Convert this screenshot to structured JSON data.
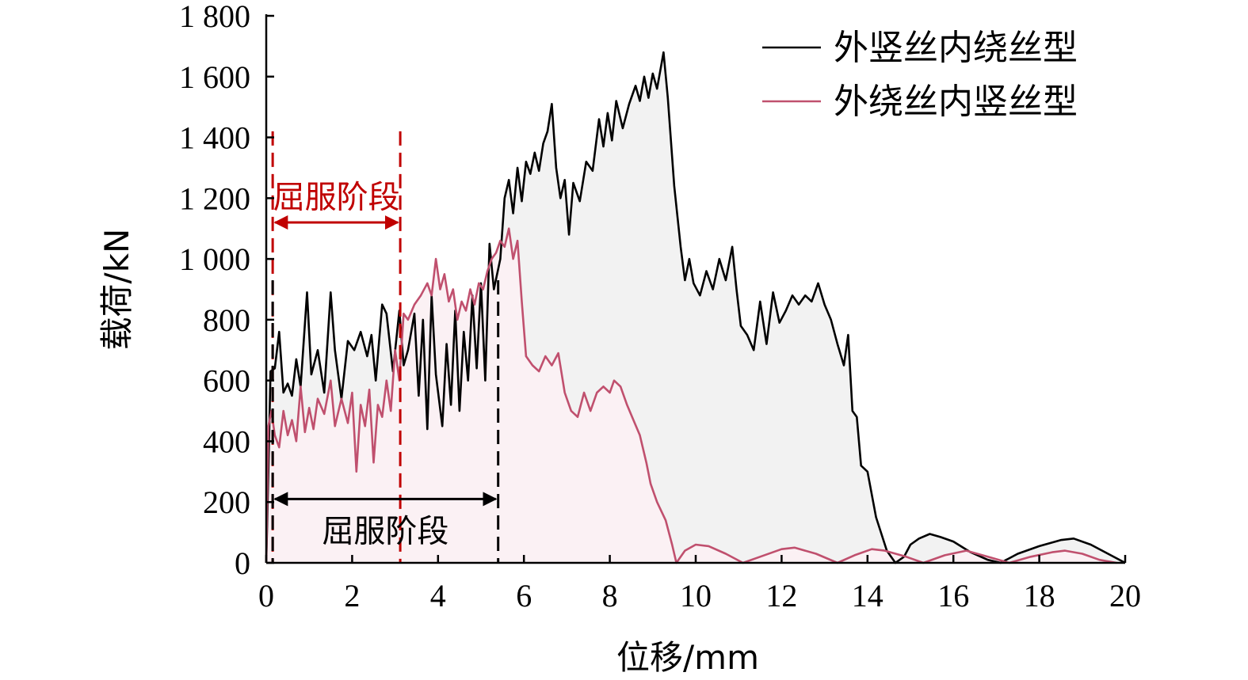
{
  "chart_data": {
    "type": "line",
    "title": "",
    "xlabel": "位移/mm",
    "ylabel": "载荷/kN",
    "xlim": [
      0,
      20
    ],
    "ylim": [
      0,
      1800
    ],
    "x_ticks": [
      0,
      2,
      4,
      6,
      8,
      10,
      12,
      14,
      16,
      18,
      20
    ],
    "x_tick_labels": [
      "0",
      "2",
      "4",
      "6",
      "8",
      "10",
      "12",
      "14",
      "16",
      "18",
      "20"
    ],
    "y_ticks": [
      0,
      200,
      400,
      600,
      800,
      1000,
      1200,
      1400,
      1600,
      1800
    ],
    "y_tick_labels": [
      "0",
      "200",
      "400",
      "600",
      "800",
      "1 000",
      "1 200",
      "1 400",
      "1 600",
      "1 800"
    ],
    "grid": false,
    "legend_position": "top-right",
    "series": [
      {
        "name": "外竖丝内绕丝型",
        "color": "#000000",
        "fill": "#f2f2f2",
        "points": [
          [
            0,
            0
          ],
          [
            0.05,
            300
          ],
          [
            0.1,
            630
          ],
          [
            0.2,
            640
          ],
          [
            0.3,
            760
          ],
          [
            0.4,
            560
          ],
          [
            0.5,
            590
          ],
          [
            0.6,
            550
          ],
          [
            0.7,
            670
          ],
          [
            0.8,
            580
          ],
          [
            0.95,
            890
          ],
          [
            1.05,
            620
          ],
          [
            1.2,
            700
          ],
          [
            1.35,
            560
          ],
          [
            1.5,
            890
          ],
          [
            1.6,
            700
          ],
          [
            1.75,
            540
          ],
          [
            1.9,
            730
          ],
          [
            2.05,
            700
          ],
          [
            2.2,
            760
          ],
          [
            2.35,
            680
          ],
          [
            2.45,
            750
          ],
          [
            2.55,
            600
          ],
          [
            2.7,
            850
          ],
          [
            2.8,
            820
          ],
          [
            2.95,
            630
          ],
          [
            3.1,
            830
          ],
          [
            3.2,
            650
          ],
          [
            3.3,
            700
          ],
          [
            3.45,
            820
          ],
          [
            3.55,
            550
          ],
          [
            3.65,
            800
          ],
          [
            3.75,
            440
          ],
          [
            3.85,
            880
          ],
          [
            3.95,
            620
          ],
          [
            4.1,
            450
          ],
          [
            4.2,
            720
          ],
          [
            4.3,
            520
          ],
          [
            4.4,
            830
          ],
          [
            4.5,
            500
          ],
          [
            4.6,
            760
          ],
          [
            4.7,
            600
          ],
          [
            4.8,
            880
          ],
          [
            4.9,
            640
          ],
          [
            5.0,
            920
          ],
          [
            5.1,
            600
          ],
          [
            5.2,
            1050
          ],
          [
            5.3,
            900
          ],
          [
            5.45,
            1000
          ],
          [
            5.55,
            1200
          ],
          [
            5.65,
            1260
          ],
          [
            5.75,
            1150
          ],
          [
            5.85,
            1300
          ],
          [
            5.95,
            1190
          ],
          [
            6.05,
            1320
          ],
          [
            6.15,
            1280
          ],
          [
            6.25,
            1350
          ],
          [
            6.35,
            1290
          ],
          [
            6.45,
            1380
          ],
          [
            6.55,
            1420
          ],
          [
            6.65,
            1510
          ],
          [
            6.75,
            1300
          ],
          [
            6.85,
            1200
          ],
          [
            6.95,
            1260
          ],
          [
            7.05,
            1080
          ],
          [
            7.15,
            1250
          ],
          [
            7.3,
            1190
          ],
          [
            7.45,
            1320
          ],
          [
            7.6,
            1290
          ],
          [
            7.75,
            1460
          ],
          [
            7.85,
            1370
          ],
          [
            7.95,
            1480
          ],
          [
            8.05,
            1390
          ],
          [
            8.15,
            1520
          ],
          [
            8.3,
            1430
          ],
          [
            8.45,
            1510
          ],
          [
            8.6,
            1570
          ],
          [
            8.7,
            1520
          ],
          [
            8.8,
            1600
          ],
          [
            8.9,
            1530
          ],
          [
            9.0,
            1610
          ],
          [
            9.1,
            1560
          ],
          [
            9.25,
            1680
          ],
          [
            9.35,
            1530
          ],
          [
            9.5,
            1240
          ],
          [
            9.65,
            1040
          ],
          [
            9.75,
            930
          ],
          [
            9.85,
            1000
          ],
          [
            9.95,
            920
          ],
          [
            10.1,
            880
          ],
          [
            10.25,
            960
          ],
          [
            10.4,
            900
          ],
          [
            10.55,
            1000
          ],
          [
            10.7,
            930
          ],
          [
            10.85,
            1040
          ],
          [
            10.95,
            900
          ],
          [
            11.05,
            780
          ],
          [
            11.2,
            750
          ],
          [
            11.35,
            700
          ],
          [
            11.5,
            860
          ],
          [
            11.65,
            720
          ],
          [
            11.8,
            890
          ],
          [
            11.95,
            790
          ],
          [
            12.1,
            830
          ],
          [
            12.25,
            880
          ],
          [
            12.4,
            850
          ],
          [
            12.55,
            880
          ],
          [
            12.7,
            860
          ],
          [
            12.85,
            920
          ],
          [
            13.0,
            850
          ],
          [
            13.15,
            800
          ],
          [
            13.3,
            720
          ],
          [
            13.45,
            650
          ],
          [
            13.55,
            750
          ],
          [
            13.65,
            500
          ],
          [
            13.75,
            480
          ],
          [
            13.85,
            320
          ],
          [
            14.0,
            300
          ],
          [
            14.2,
            150
          ],
          [
            14.45,
            40
          ],
          [
            14.65,
            0
          ],
          [
            14.85,
            20
          ],
          [
            15.0,
            60
          ],
          [
            15.2,
            80
          ],
          [
            15.45,
            95
          ],
          [
            15.7,
            85
          ],
          [
            16.0,
            70
          ],
          [
            16.4,
            35
          ],
          [
            16.8,
            10
          ],
          [
            17.1,
            0
          ],
          [
            17.5,
            30
          ],
          [
            18.0,
            55
          ],
          [
            18.5,
            75
          ],
          [
            18.8,
            80
          ],
          [
            19.2,
            60
          ],
          [
            19.6,
            30
          ],
          [
            20.0,
            0
          ]
        ]
      },
      {
        "name": "外绕丝内竖丝型",
        "color": "#c0506e",
        "fill": "#fbf1f4",
        "points": [
          [
            0,
            0
          ],
          [
            0.05,
            450
          ],
          [
            0.12,
            500
          ],
          [
            0.2,
            420
          ],
          [
            0.3,
            380
          ],
          [
            0.4,
            500
          ],
          [
            0.5,
            420
          ],
          [
            0.6,
            470
          ],
          [
            0.7,
            400
          ],
          [
            0.8,
            580
          ],
          [
            0.9,
            430
          ],
          [
            1.0,
            510
          ],
          [
            1.1,
            440
          ],
          [
            1.2,
            540
          ],
          [
            1.35,
            490
          ],
          [
            1.5,
            600
          ],
          [
            1.6,
            450
          ],
          [
            1.75,
            540
          ],
          [
            1.9,
            460
          ],
          [
            2.0,
            560
          ],
          [
            2.1,
            300
          ],
          [
            2.2,
            520
          ],
          [
            2.3,
            450
          ],
          [
            2.4,
            570
          ],
          [
            2.5,
            330
          ],
          [
            2.6,
            520
          ],
          [
            2.7,
            480
          ],
          [
            2.8,
            600
          ],
          [
            2.9,
            500
          ],
          [
            3.0,
            700
          ],
          [
            3.1,
            600
          ],
          [
            3.2,
            820
          ],
          [
            3.3,
            800
          ],
          [
            3.45,
            850
          ],
          [
            3.6,
            880
          ],
          [
            3.75,
            920
          ],
          [
            3.85,
            880
          ],
          [
            3.95,
            1000
          ],
          [
            4.05,
            900
          ],
          [
            4.15,
            950
          ],
          [
            4.25,
            860
          ],
          [
            4.35,
            900
          ],
          [
            4.45,
            800
          ],
          [
            4.55,
            860
          ],
          [
            4.65,
            830
          ],
          [
            4.75,
            900
          ],
          [
            4.85,
            850
          ],
          [
            4.95,
            920
          ],
          [
            5.05,
            900
          ],
          [
            5.15,
            960
          ],
          [
            5.25,
            1000
          ],
          [
            5.35,
            1020
          ],
          [
            5.45,
            1060
          ],
          [
            5.55,
            1040
          ],
          [
            5.65,
            1100
          ],
          [
            5.75,
            1000
          ],
          [
            5.85,
            1060
          ],
          [
            5.95,
            860
          ],
          [
            6.05,
            680
          ],
          [
            6.2,
            650
          ],
          [
            6.35,
            630
          ],
          [
            6.5,
            680
          ],
          [
            6.65,
            650
          ],
          [
            6.8,
            690
          ],
          [
            6.95,
            560
          ],
          [
            7.1,
            500
          ],
          [
            7.25,
            480
          ],
          [
            7.4,
            560
          ],
          [
            7.55,
            500
          ],
          [
            7.7,
            560
          ],
          [
            7.85,
            580
          ],
          [
            8.0,
            560
          ],
          [
            8.1,
            600
          ],
          [
            8.25,
            580
          ],
          [
            8.4,
            520
          ],
          [
            8.55,
            470
          ],
          [
            8.7,
            420
          ],
          [
            8.85,
            330
          ],
          [
            8.95,
            260
          ],
          [
            9.1,
            200
          ],
          [
            9.3,
            140
          ],
          [
            9.45,
            60
          ],
          [
            9.55,
            0
          ],
          [
            9.75,
            40
          ],
          [
            10.0,
            60
          ],
          [
            10.3,
            55
          ],
          [
            10.7,
            30
          ],
          [
            11.1,
            0
          ],
          [
            11.5,
            20
          ],
          [
            12.0,
            45
          ],
          [
            12.3,
            50
          ],
          [
            12.8,
            30
          ],
          [
            13.3,
            0
          ],
          [
            13.7,
            25
          ],
          [
            14.1,
            45
          ],
          [
            14.4,
            40
          ],
          [
            14.9,
            20
          ],
          [
            15.3,
            0
          ],
          [
            15.8,
            25
          ],
          [
            16.3,
            40
          ],
          [
            16.8,
            20
          ],
          [
            17.3,
            0
          ],
          [
            17.8,
            20
          ],
          [
            18.3,
            35
          ],
          [
            18.6,
            40
          ],
          [
            19.0,
            30
          ],
          [
            19.4,
            10
          ],
          [
            19.8,
            0
          ]
        ]
      }
    ],
    "annotations": [
      {
        "text": "屈服阶段",
        "color": "#c00000",
        "x_start": 0.15,
        "x_end": 3.12,
        "arrow_y": 1120,
        "text_y": 1205,
        "line_top": 1420,
        "dashed": true
      },
      {
        "text": "屈服阶段",
        "color": "#000000",
        "x_start": 0.15,
        "x_end": 5.4,
        "arrow_y": 210,
        "text_y": 105,
        "line_top": 930,
        "dashed": true
      }
    ]
  }
}
